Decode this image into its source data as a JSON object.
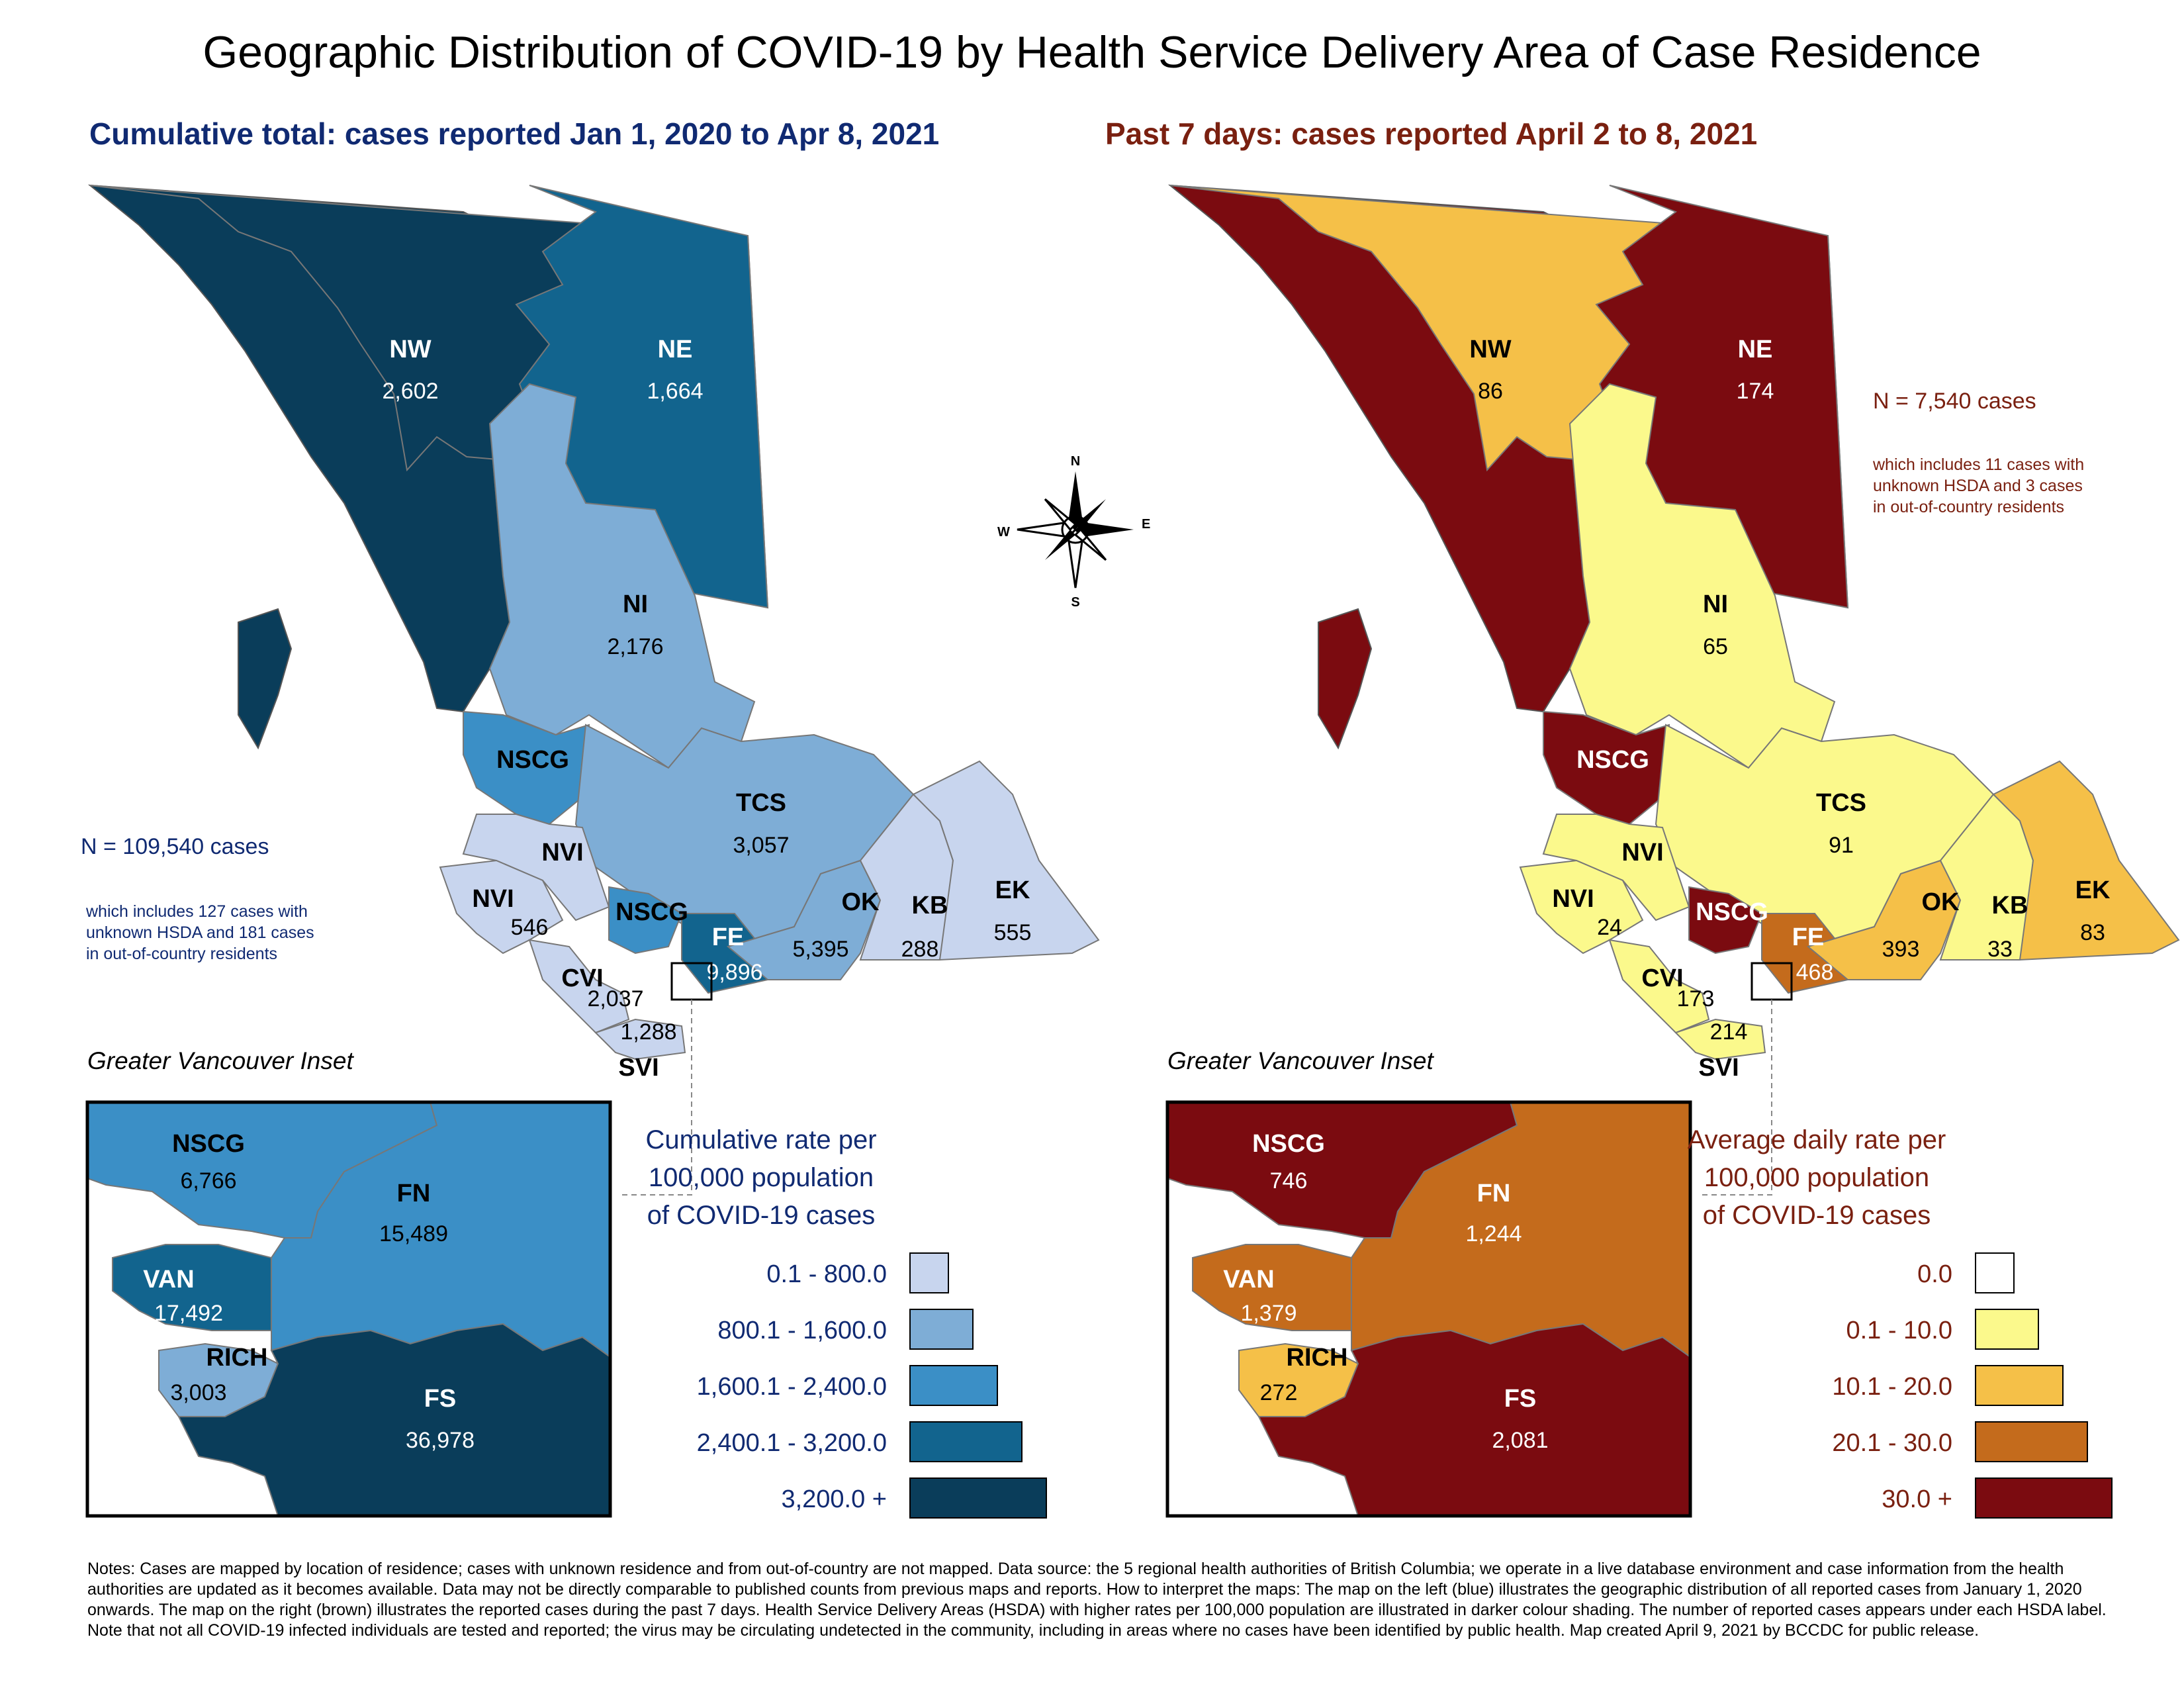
{
  "title": "Geographic Distribution of COVID-19 by Health Service Delivery Area of Case Residence",
  "colors": {
    "blue_scale": [
      "#c8d5ee",
      "#7eadd6",
      "#3b8fc6",
      "#12648e",
      "#0a3d5a"
    ],
    "brown_scale": [
      "#ffffff",
      "#fbf98c",
      "#f5c048",
      "#c46b1c",
      "#7b0b10"
    ],
    "blue_text": "#102a72",
    "brown_text": "#7a2010"
  },
  "left_map": {
    "subtitle": "Cumulative total: cases reported Jan 1, 2020 to Apr 8, 2021",
    "total": "N = 109,540 cases",
    "note": [
      "which includes 127 cases with",
      "unknown HSDA and 181 cases",
      "in out-of-country residents"
    ],
    "regions": [
      {
        "code": "NW",
        "value": "2,602",
        "rate_class": 4
      },
      {
        "code": "NE",
        "value": "1,664",
        "rate_class": 3
      },
      {
        "code": "NI",
        "value": "2,176",
        "rate_class": 1
      },
      {
        "code": "NSCG",
        "value": "",
        "rate_class": 2
      },
      {
        "code": "TCS",
        "value": "3,057",
        "rate_class": 1
      },
      {
        "code": "NVI",
        "value": "",
        "rate_class": 0
      },
      {
        "code": "NVI",
        "value": "546",
        "rate_class": 0
      },
      {
        "code": "NSCG",
        "value": "",
        "rate_class": 2
      },
      {
        "code": "FE",
        "value": "9,896",
        "rate_class": 3
      },
      {
        "code": "OK",
        "value": "5,395",
        "rate_class": 1
      },
      {
        "code": "KB",
        "value": "288",
        "rate_class": 0
      },
      {
        "code": "EK",
        "value": "555",
        "rate_class": 0
      },
      {
        "code": "CVI",
        "value": "2,037",
        "rate_class": 0
      },
      {
        "code": "SVI",
        "value": "1,288",
        "rate_class": 0
      }
    ],
    "inset_title": "Greater Vancouver Inset",
    "inset_regions": [
      {
        "code": "NSCG",
        "value": "6,766",
        "rate_class": 2
      },
      {
        "code": "FN",
        "value": "15,489",
        "rate_class": 2
      },
      {
        "code": "VAN",
        "value": "17,492",
        "rate_class": 3
      },
      {
        "code": "RICH",
        "value": "3,003",
        "rate_class": 1
      },
      {
        "code": "FS",
        "value": "36,978",
        "rate_class": 4
      }
    ],
    "legend_title": [
      "Cumulative rate per",
      "100,000 population",
      "of COVID-19 cases"
    ],
    "legend_items": [
      "0.1 - 800.0",
      "800.1 - 1,600.0",
      "1,600.1 - 2,400.0",
      "2,400.1 - 3,200.0",
      "3,200.0 +"
    ]
  },
  "right_map": {
    "subtitle": "Past 7 days: cases reported April 2 to 8, 2021",
    "total": "N = 7,540 cases",
    "note": [
      "which includes 11 cases with",
      "unknown HSDA and 3 cases",
      "in out-of-country residents"
    ],
    "regions": [
      {
        "code": "NW",
        "value": "86",
        "rate_class": 2
      },
      {
        "code": "NE",
        "value": "174",
        "rate_class": 4
      },
      {
        "code": "NI",
        "value": "65",
        "rate_class": 1
      },
      {
        "code": "NSCG",
        "value": "",
        "rate_class": 4
      },
      {
        "code": "TCS",
        "value": "91",
        "rate_class": 1
      },
      {
        "code": "NVI",
        "value": "",
        "rate_class": 1
      },
      {
        "code": "NVI",
        "value": "24",
        "rate_class": 1
      },
      {
        "code": "NSCG",
        "value": "",
        "rate_class": 4
      },
      {
        "code": "FE",
        "value": "468",
        "rate_class": 3
      },
      {
        "code": "OK",
        "value": "393",
        "rate_class": 2
      },
      {
        "code": "KB",
        "value": "33",
        "rate_class": 1
      },
      {
        "code": "EK",
        "value": "83",
        "rate_class": 2
      },
      {
        "code": "CVI",
        "value": "173",
        "rate_class": 1
      },
      {
        "code": "SVI",
        "value": "214",
        "rate_class": 1
      }
    ],
    "inset_title": "Greater Vancouver Inset",
    "inset_regions": [
      {
        "code": "NSCG",
        "value": "746",
        "rate_class": 4
      },
      {
        "code": "FN",
        "value": "1,244",
        "rate_class": 3
      },
      {
        "code": "VAN",
        "value": "1,379",
        "rate_class": 3
      },
      {
        "code": "RICH",
        "value": "272",
        "rate_class": 2
      },
      {
        "code": "FS",
        "value": "2,081",
        "rate_class": 4
      }
    ],
    "legend_title": [
      "Average daily rate per",
      "100,000 population",
      "of COVID-19 cases"
    ],
    "legend_items": [
      "0.0",
      "0.1 - 10.0",
      "10.1 - 20.0",
      "20.1 - 30.0",
      "30.0 +"
    ]
  },
  "compass": {
    "n": "N",
    "s": "S",
    "e": "E",
    "w": "W"
  },
  "notes": "Notes: Cases are mapped by location of residence; cases with unknown residence and from out-of-country are not mapped. Data source: the 5 regional health authorities of British Columbia; we operate in a live database environment and case information from the health authorities are updated as it becomes available. Data may not be directly comparable to published counts from previous maps and reports. How to interpret the maps: The map on the left (blue) illustrates the geographic distribution of all reported cases from January 1, 2020 onwards. The map on the right (brown) illustrates the reported cases during the past 7 days. Health Service Delivery Areas (HSDA) with higher rates per 100,000 population are illustrated in darker colour shading. The number of reported cases appears under each HSDA label. Note that not all COVID-19 infected individuals are tested and reported; the virus may be circulating undetected in the community, including in areas where no cases have been identified by public health. Map created April 9, 2021 by BCCDC for public release."
}
